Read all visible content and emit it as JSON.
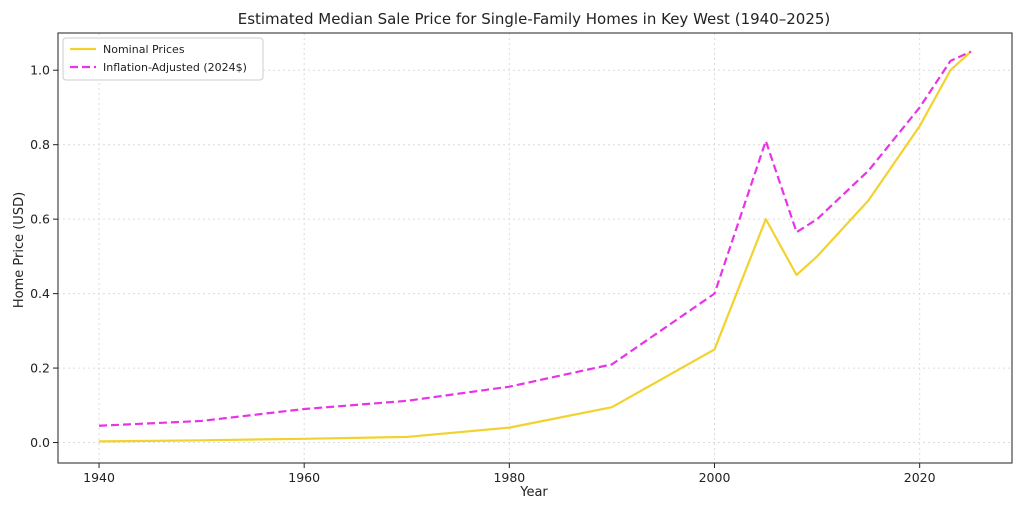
{
  "chart_data": {
    "type": "line",
    "title": "Estimated Median Sale Price for Single-Family Homes in Key West (1940–2025)",
    "xlabel": "Year",
    "ylabel": "Home Price (USD)",
    "xlim": [
      1936,
      2029
    ],
    "ylim": [
      -0.055,
      1.1
    ],
    "xticks": [
      1940,
      1960,
      1980,
      2000,
      2020
    ],
    "yticks": [
      0.0,
      0.2,
      0.4,
      0.6,
      0.8,
      1.0
    ],
    "ytick_labels": [
      "0.0",
      "0.2",
      "0.4",
      "0.6",
      "0.8",
      "1.0"
    ],
    "grid": true,
    "legend_position": "top-left",
    "series": [
      {
        "name": "Nominal Prices",
        "color": "#f2d22e",
        "style": "solid",
        "points": [
          [
            1940,
            0.003
          ],
          [
            1950,
            0.006
          ],
          [
            1960,
            0.01
          ],
          [
            1970,
            0.015
          ],
          [
            1980,
            0.04
          ],
          [
            1990,
            0.095
          ],
          [
            2000,
            0.25
          ],
          [
            2005,
            0.6
          ],
          [
            2008,
            0.45
          ],
          [
            2010,
            0.5
          ],
          [
            2015,
            0.65
          ],
          [
            2020,
            0.85
          ],
          [
            2023,
            1.0
          ],
          [
            2025,
            1.05
          ]
        ]
      },
      {
        "name": "Inflation-Adjusted (2024$)",
        "color": "#e833e8",
        "style": "dashed",
        "points": [
          [
            1940,
            0.045
          ],
          [
            1950,
            0.058
          ],
          [
            1960,
            0.09
          ],
          [
            1970,
            0.112
          ],
          [
            1980,
            0.15
          ],
          [
            1990,
            0.21
          ],
          [
            2000,
            0.4
          ],
          [
            2005,
            0.81
          ],
          [
            2008,
            0.565
          ],
          [
            2010,
            0.6
          ],
          [
            2015,
            0.73
          ],
          [
            2020,
            0.9
          ],
          [
            2023,
            1.025
          ],
          [
            2025,
            1.05
          ]
        ]
      }
    ]
  }
}
